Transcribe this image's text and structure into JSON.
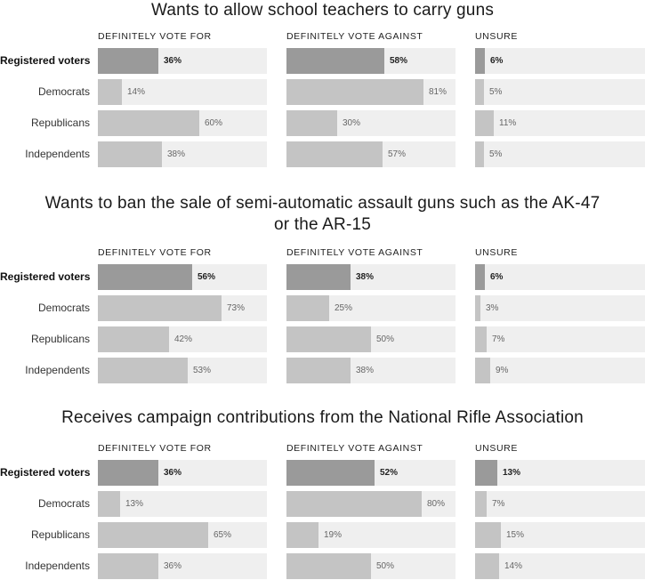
{
  "colors": {
    "highlight_bar": "#9a9a9a",
    "bar": "#c4c4c4",
    "track": "#efefef"
  },
  "chart_data": [
    {
      "type": "bar",
      "title": "Wants to allow school teachers to carry guns",
      "categories": [
        "Registered voters",
        "Democrats",
        "Republicans",
        "Independents"
      ],
      "series": [
        {
          "name": "DEFINITELY VOTE FOR",
          "values": [
            36,
            14,
            60,
            38
          ]
        },
        {
          "name": "DEFINITELY VOTE AGAINST",
          "values": [
            58,
            81,
            30,
            57
          ]
        },
        {
          "name": "UNSURE",
          "values": [
            6,
            5,
            11,
            5
          ]
        }
      ],
      "unit": "%",
      "xlim": [
        0,
        100
      ]
    },
    {
      "type": "bar",
      "title": "Wants to ban the sale of semi-automatic assault guns such as the AK-47 or the AR-15",
      "categories": [
        "Registered voters",
        "Democrats",
        "Republicans",
        "Independents"
      ],
      "series": [
        {
          "name": "DEFINITELY VOTE FOR",
          "values": [
            56,
            73,
            42,
            53
          ]
        },
        {
          "name": "DEFINITELY VOTE AGAINST",
          "values": [
            38,
            25,
            50,
            38
          ]
        },
        {
          "name": "UNSURE",
          "values": [
            6,
            3,
            7,
            9
          ]
        }
      ],
      "unit": "%",
      "xlim": [
        0,
        100
      ]
    },
    {
      "type": "bar",
      "title": "Receives campaign contributions from the National Rifle Association",
      "categories": [
        "Registered voters",
        "Democrats",
        "Republicans",
        "Independents"
      ],
      "series": [
        {
          "name": "DEFINITELY VOTE FOR",
          "values": [
            36,
            13,
            65,
            36
          ]
        },
        {
          "name": "DEFINITELY VOTE AGAINST",
          "values": [
            52,
            80,
            19,
            50
          ]
        },
        {
          "name": "UNSURE",
          "values": [
            13,
            7,
            15,
            14
          ]
        }
      ],
      "unit": "%",
      "xlim": [
        0,
        100
      ]
    }
  ]
}
